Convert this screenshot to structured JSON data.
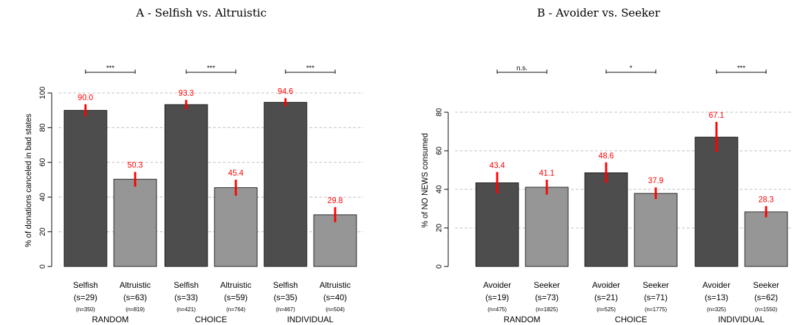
{
  "colors": {
    "dark_bar": "#4d4d4d",
    "light_bar": "#969696",
    "error_bar": "#ff0000",
    "value_label": "#ff0000",
    "grid": "#bfbfbf",
    "axis": "#000000"
  },
  "chart_data": [
    {
      "type": "bar",
      "title": "A - Selfish vs. Altruistic",
      "ylabel": "% of donations canceled in bad states",
      "ylim": [
        0,
        100
      ],
      "yticks": [
        0,
        20,
        40,
        60,
        80,
        100
      ],
      "grid": true,
      "groups": [
        {
          "name": "RANDOM",
          "significance": "***",
          "bars": [
            {
              "label": "Selfish",
              "s": "(s=29)",
              "n": "(n=350)",
              "value": 90.0,
              "value_label": "90.0",
              "err_low": 86.5,
              "err_high": 93.5,
              "style": "dark"
            },
            {
              "label": "Altruistic",
              "s": "(s=63)",
              "n": "(n=819)",
              "value": 50.3,
              "value_label": "50.3",
              "err_low": 46.0,
              "err_high": 54.5,
              "style": "light"
            }
          ]
        },
        {
          "name": "CHOICE",
          "significance": "***",
          "bars": [
            {
              "label": "Selfish",
              "s": "(s=33)",
              "n": "(n=421)",
              "value": 93.3,
              "value_label": "93.3",
              "err_low": 90.5,
              "err_high": 96.0,
              "style": "dark"
            },
            {
              "label": "Altruistic",
              "s": "(s=59)",
              "n": "(n=764)",
              "value": 45.4,
              "value_label": "45.4",
              "err_low": 40.8,
              "err_high": 50.0,
              "style": "light"
            }
          ]
        },
        {
          "name": "INDIVIDUAL",
          "significance": "***",
          "bars": [
            {
              "label": "Selfish",
              "s": "(s=35)",
              "n": "(n=467)",
              "value": 94.6,
              "value_label": "94.6",
              "err_low": 92.3,
              "err_high": 97.0,
              "style": "dark"
            },
            {
              "label": "Altruistic",
              "s": "(s=40)",
              "n": "(n=504)",
              "value": 29.8,
              "value_label": "29.8",
              "err_low": 25.5,
              "err_high": 34.2,
              "style": "light"
            }
          ]
        }
      ]
    },
    {
      "type": "bar",
      "title": "B - Avoider vs. Seeker",
      "ylabel": "% of NO NEWS consumed",
      "ylim": [
        0,
        90
      ],
      "yticks": [
        0,
        20,
        40,
        60,
        80
      ],
      "grid": true,
      "groups": [
        {
          "name": "RANDOM",
          "significance": "n.s.",
          "bars": [
            {
              "label": "Avoider",
              "s": "(s=19)",
              "n": "(n=475)",
              "value": 43.4,
              "value_label": "43.4",
              "err_low": 37.8,
              "err_high": 49.0,
              "style": "dark"
            },
            {
              "label": "Seeker",
              "s": "(s=73)",
              "n": "(n=1825)",
              "value": 41.1,
              "value_label": "41.1",
              "err_low": 37.3,
              "err_high": 45.0,
              "style": "light"
            }
          ]
        },
        {
          "name": "CHOICE",
          "significance": "*",
          "bars": [
            {
              "label": "Avoider",
              "s": "(s=21)",
              "n": "(n=525)",
              "value": 48.6,
              "value_label": "48.6",
              "err_low": 43.3,
              "err_high": 54.0,
              "style": "dark"
            },
            {
              "label": "Seeker",
              "s": "(s=71)",
              "n": "(n=1775)",
              "value": 37.9,
              "value_label": "37.9",
              "err_low": 35.0,
              "err_high": 41.0,
              "style": "light"
            }
          ]
        },
        {
          "name": "INDIVIDUAL",
          "significance": "***",
          "bars": [
            {
              "label": "Avoider",
              "s": "(s=13)",
              "n": "(n=325)",
              "value": 67.1,
              "value_label": "67.1",
              "err_low": 59.3,
              "err_high": 75.0,
              "style": "dark"
            },
            {
              "label": "Seeker",
              "s": "(s=62)",
              "n": "(n=1550)",
              "value": 28.3,
              "value_label": "28.3",
              "err_low": 25.5,
              "err_high": 31.3,
              "style": "light"
            }
          ]
        }
      ]
    }
  ]
}
